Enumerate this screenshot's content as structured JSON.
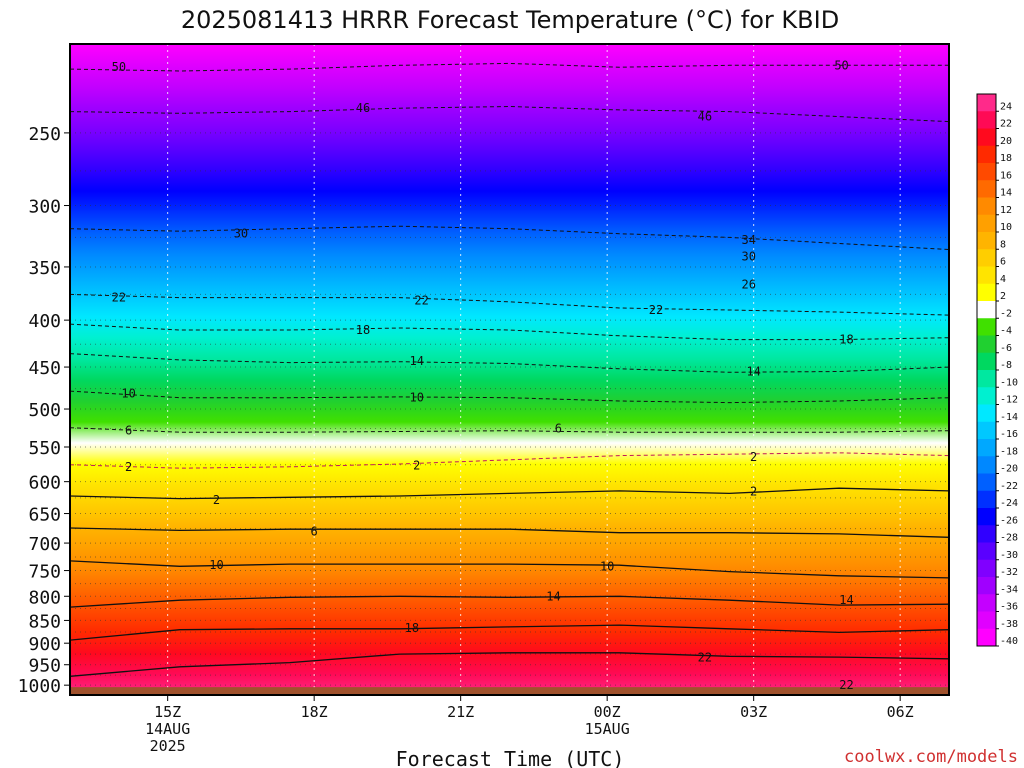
{
  "chart_data": {
    "type": "heatmap",
    "title": "2025081413 HRRR Forecast Temperature (°C) for KBID",
    "xlabel": "Forecast Time (UTC)",
    "ylabel": "",
    "credit": "coolwx.com/models",
    "y_scale": "log-pressure",
    "ylim": [
      1025,
      200
    ],
    "xlim_hours": [
      13,
      31
    ],
    "x_ticks": [
      {
        "hour": 15,
        "lines": [
          "15Z",
          "14AUG",
          "2025"
        ]
      },
      {
        "hour": 18,
        "lines": [
          "18Z"
        ]
      },
      {
        "hour": 21,
        "lines": [
          "21Z"
        ]
      },
      {
        "hour": 24,
        "lines": [
          "00Z",
          "15AUG"
        ]
      },
      {
        "hour": 27,
        "lines": [
          "03Z"
        ]
      },
      {
        "hour": 30,
        "lines": [
          "06Z"
        ]
      }
    ],
    "y_ticks": [
      250,
      300,
      350,
      400,
      450,
      500,
      550,
      600,
      650,
      700,
      750,
      800,
      850,
      900,
      950,
      1000
    ],
    "surface_pressure_hpa": 1005,
    "colorbar": {
      "labels": [
        "24",
        "22",
        "20",
        "18",
        "16",
        "14",
        "12",
        "10",
        "8",
        "6",
        "4",
        "2",
        "-2",
        "-4",
        "-6",
        "-8",
        "-10",
        "-12",
        "-14",
        "-16",
        "-18",
        "-20",
        "-22",
        "-24",
        "-26",
        "-28",
        "-30",
        "-32",
        "-34",
        "-36",
        "-38",
        "-40"
      ],
      "colors": [
        "#ff2a8a",
        "#ff0a55",
        "#ff0a1e",
        "#ff2a00",
        "#ff4a00",
        "#ff6a00",
        "#ff8a00",
        "#ffa000",
        "#ffb400",
        "#ffce00",
        "#ffe400",
        "#ffff00",
        "#ffffff",
        "#40e000",
        "#20d030",
        "#00d860",
        "#00e8a0",
        "#00f0d0",
        "#00e8ff",
        "#00c8ff",
        "#00a8ff",
        "#0088ff",
        "#0060ff",
        "#0030ff",
        "#0000ff",
        "#3000ff",
        "#5a00ff",
        "#8000ff",
        "#a000ff",
        "#c400ff",
        "#e000ff",
        "#ff00ff"
      ]
    },
    "isotherms": [
      {
        "temp": -50,
        "p": [
          213,
          214,
          213,
          211,
          210,
          212,
          211,
          211,
          211
        ]
      },
      {
        "temp": -46,
        "p": [
          237,
          238,
          237,
          235,
          234,
          236,
          237,
          240,
          243
        ]
      },
      {
        "temp": -30,
        "p": [
          318,
          320,
          318,
          316,
          318,
          322,
          325,
          330,
          335
        ]
      },
      {
        "temp": -22,
        "p": [
          375,
          378,
          378,
          378,
          382,
          388,
          390,
          392,
          395
        ]
      },
      {
        "temp": -18,
        "p": [
          404,
          410,
          410,
          408,
          410,
          416,
          420,
          420,
          418
        ]
      },
      {
        "temp": -14,
        "p": [
          435,
          442,
          445,
          444,
          446,
          452,
          456,
          455,
          450
        ]
      },
      {
        "temp": -10,
        "p": [
          478,
          486,
          486,
          485,
          486,
          490,
          492,
          490,
          486
        ]
      },
      {
        "temp": -6,
        "p": [
          524,
          530,
          530,
          529,
          528,
          530,
          530,
          530,
          528
        ]
      },
      {
        "temp": -2,
        "p": [
          575,
          580,
          578,
          574,
          568,
          562,
          560,
          558,
          562
        ]
      },
      {
        "temp": 2,
        "p": [
          622,
          626,
          624,
          622,
          618,
          614,
          618,
          610,
          614
        ]
      },
      {
        "temp": 6,
        "p": [
          674,
          678,
          676,
          676,
          676,
          682,
          682,
          684,
          690
        ]
      },
      {
        "temp": 10,
        "p": [
          732,
          742,
          738,
          738,
          738,
          740,
          752,
          760,
          764
        ]
      },
      {
        "temp": 14,
        "p": [
          822,
          808,
          802,
          800,
          802,
          800,
          808,
          818,
          816
        ]
      },
      {
        "temp": 18,
        "p": [
          893,
          870,
          868,
          868,
          864,
          860,
          868,
          876,
          870
        ]
      },
      {
        "temp": 22,
        "p": [
          978,
          955,
          945,
          925,
          922,
          922,
          930,
          932,
          936
        ]
      }
    ],
    "isotherm_labels": [
      {
        "text": "50",
        "hour": 14.0,
        "p": 212
      },
      {
        "text": "50",
        "hour": 28.8,
        "p": 211
      },
      {
        "text": "46",
        "hour": 19.0,
        "p": 235
      },
      {
        "text": "46",
        "hour": 26.0,
        "p": 240
      },
      {
        "text": "34",
        "hour": 26.9,
        "p": 327
      },
      {
        "text": "30",
        "hour": 16.5,
        "p": 322
      },
      {
        "text": "30",
        "hour": 26.9,
        "p": 341
      },
      {
        "text": "26",
        "hour": 26.9,
        "p": 366
      },
      {
        "text": "22",
        "hour": 14.0,
        "p": 378
      },
      {
        "text": "22",
        "hour": 20.2,
        "p": 381
      },
      {
        "text": "22",
        "hour": 25.0,
        "p": 390
      },
      {
        "text": "18",
        "hour": 19.0,
        "p": 410
      },
      {
        "text": "18",
        "hour": 28.9,
        "p": 420
      },
      {
        "text": "14",
        "hour": 20.1,
        "p": 443
      },
      {
        "text": "14",
        "hour": 27.0,
        "p": 455
      },
      {
        "text": "10",
        "hour": 14.2,
        "p": 481
      },
      {
        "text": "10",
        "hour": 20.1,
        "p": 486
      },
      {
        "text": "6",
        "hour": 14.2,
        "p": 528
      },
      {
        "text": "6",
        "hour": 23.0,
        "p": 525
      },
      {
        "text": "2",
        "hour": 14.2,
        "p": 578
      },
      {
        "text": "2",
        "hour": 20.1,
        "p": 576
      },
      {
        "text": "2",
        "hour": 27.0,
        "p": 564
      },
      {
        "text": "2",
        "hour": 16.0,
        "p": 628
      },
      {
        "text": "2",
        "hour": 27.0,
        "p": 615
      },
      {
        "text": "6",
        "hour": 18.0,
        "p": 680
      },
      {
        "text": "10",
        "hour": 16.0,
        "p": 740
      },
      {
        "text": "10",
        "hour": 24.0,
        "p": 742
      },
      {
        "text": "14",
        "hour": 22.9,
        "p": 800
      },
      {
        "text": "14",
        "hour": 28.9,
        "p": 808
      },
      {
        "text": "18",
        "hour": 20.0,
        "p": 866
      },
      {
        "text": "22",
        "hour": 26.0,
        "p": 933
      },
      {
        "text": "22",
        "hour": 28.9,
        "p": 1000
      }
    ]
  }
}
